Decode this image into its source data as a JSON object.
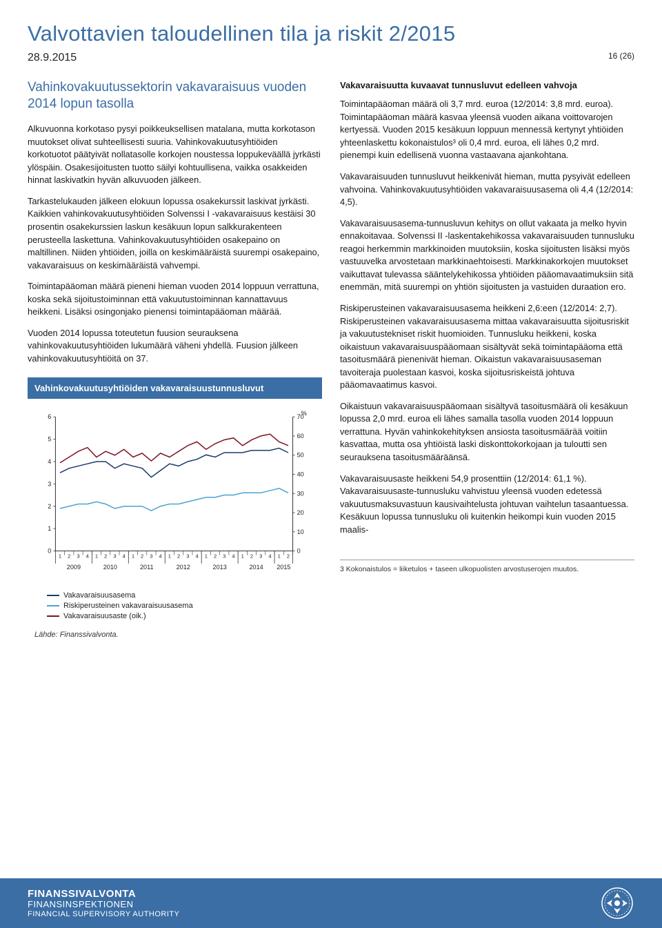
{
  "header": {
    "title": "Valvottavien taloudellinen tila ja riskit 2/2015",
    "date": "28.9.2015",
    "page_label": "16 (26)"
  },
  "left": {
    "section_heading": "Vahinkovakuutussektorin vakavaraisuus vuoden 2014 lopun tasolla",
    "p1": "Alkuvuonna korkotaso pysyi poikkeuksellisen matalana, mutta korkotason muutokset olivat suhteellisesti suuria. Vahinkovakuutusyhtiöiden korkotuotot päätyivät nollatasolle korkojen noustessa loppukeväällä jyrkästi ylöspäin. Osakesijoitusten tuotto säilyi kohtuullisena, vaikka osakkeiden hinnat laskivatkin hyvän alkuvuoden jälkeen.",
    "p2": "Tarkastelukauden jälkeen elokuun lopussa osakekurssit laskivat jyrkästi. Kaikkien vahinkovakuutusyhtiöiden Solvenssi I -vakavaraisuus kestäisi 30 prosentin osakekurssien laskun kesäkuun lopun salkkurakenteen perusteella laskettuna. Vahinkovakuutusyhtiöiden osakepaino on maltillinen. Niiden yhtiöiden, joilla on keskimääräistä suurempi osakepaino, vakavaraisuus on keskimääräistä vahvempi.",
    "p3": "Toimintapääoman määrä pieneni hieman vuoden 2014 loppuun verrattuna, koska sekä sijoitustoiminnan että vakuutustoiminnan kannattavuus heikkeni. Lisäksi osingonjako pienensi toimintapääoman määrää.",
    "p4": "Vuoden 2014 lopussa toteutetun fuusion seurauksena vahinkovakuutusyhtiöiden lukumäärä väheni yhdellä. Fuusion jälkeen vahinkovakuutusyhtiöitä on 37."
  },
  "right": {
    "subheading": "Vakavaraisuutta kuvaavat tunnusluvut edelleen vahvoja",
    "p1": "Toimintapääoman määrä oli 3,7 mrd. euroa (12/2014: 3,8 mrd. euroa). Toimintapääoman määrä kasvaa yleensä vuoden aikana voittovarojen kertyessä. Vuoden 2015 kesäkuun loppuun mennessä kertynyt yhtiöiden yhteenlaskettu kokonaistulos³ oli 0,4 mrd. euroa, eli lähes 0,2 mrd. pienempi kuin edellisenä vuonna vastaavana ajankohtana.",
    "p2": "Vakavaraisuuden tunnusluvut heikkenivät hieman, mutta pysyivät edelleen vahvoina. Vahinkovakuutusyhtiöiden vakavaraisuusasema oli 4,4 (12/2014: 4,5).",
    "p3": "Vakavaraisuusasema-tunnusluvun kehitys on ollut vakaata ja melko hyvin ennakoitavaa. Solvenssi II -laskentakehikossa vakavaraisuuden tunnusluku reagoi herkemmin markkinoiden muutoksiin, koska sijoitusten lisäksi myös vastuuvelka arvostetaan markkinaehtoisesti. Markkinakorkojen muutokset vaikuttavat tulevassa sääntelykehikossa yhtiöiden pääomavaatimuksiin sitä enemmän, mitä suurempi on yhtiön sijoitusten ja vastuiden duraation ero.",
    "p4": "Riskiperusteinen vakavaraisuusasema heikkeni 2,6:een (12/2014: 2,7). Riskiperusteinen vakavaraisuusasema mittaa vakavaraisuutta sijoitusriskit ja vakuutustekniset riskit huomioiden. Tunnusluku heikkeni, koska oikaistuun vakavaraisuuspääomaan sisältyvät sekä toimintapääoma että tasoitusmäärä pienenivät hieman. Oikaistun vakavaraisuusaseman tavoiteraja puolestaan kasvoi, koska sijoitusriskeistä johtuva pääomavaatimus kasvoi.",
    "p5": "Oikaistuun vakavaraisuuspääomaan sisältyvä tasoitusmäärä oli kesäkuun lopussa 2,0 mrd. euroa eli lähes samalla tasolla vuoden 2014 loppuun verrattuna. Hyvän vahinkokehityksen ansiosta tasoitusmäärää voitiin kasvattaa, mutta osa yhtiöistä laski diskonttokorkojaan ja tuloutti sen seurauksena tasoitusmääräänsä.",
    "p6": "Vakavaraisuusaste heikkeni 54,9 prosenttiin (12/2014: 61,1 %). Vakavaraisuusaste-tunnusluku vahvistuu yleensä vuoden edetessä vakuutusmaksuvastuun kausivaihtelusta johtuvan vaihtelun tasaantuessa. Kesäkuun lopussa tunnusluku oli kuitenkin heikompi kuin vuoden 2015 maalis-",
    "footnote": "3   Kokonaistulos = liiketulos + taseen ulkopuolisten arvostuserojen muutos."
  },
  "chart": {
    "type": "line",
    "title": "Vahinkovakuutusyhtiöiden vakavaraisuustunnusluvut",
    "left_axis": {
      "min": 0,
      "max": 6,
      "ticks": [
        0,
        1,
        2,
        3,
        4,
        5,
        6
      ]
    },
    "right_axis": {
      "label": "%",
      "min": 0,
      "max": 70,
      "ticks": [
        0,
        10,
        20,
        30,
        40,
        50,
        60,
        70
      ]
    },
    "years": [
      "2009",
      "2010",
      "2011",
      "2012",
      "2013",
      "2014",
      "2015"
    ],
    "quarters_per_year": 4,
    "quarters_last_year": 2,
    "series": [
      {
        "name": "Vakavaraisuusasema",
        "color": "#1a3a6e",
        "values": [
          3.5,
          3.7,
          3.8,
          3.9,
          4.0,
          4.0,
          3.7,
          3.9,
          3.8,
          3.7,
          3.3,
          3.6,
          3.9,
          3.8,
          4.0,
          4.1,
          4.3,
          4.2,
          4.4,
          4.4,
          4.4,
          4.5,
          4.5,
          4.5,
          4.6,
          4.4
        ]
      },
      {
        "name": "Riskiperusteinen vakavaraisuusasema",
        "color": "#4aa3d1",
        "values": [
          1.9,
          2.0,
          2.1,
          2.1,
          2.2,
          2.1,
          1.9,
          2.0,
          2.0,
          2.0,
          1.8,
          2.0,
          2.1,
          2.1,
          2.2,
          2.3,
          2.4,
          2.4,
          2.5,
          2.5,
          2.6,
          2.6,
          2.6,
          2.7,
          2.8,
          2.6
        ]
      },
      {
        "name": "Vakavaraisuusaste (oik.)",
        "color": "#7d1424",
        "yaxis": "right",
        "values": [
          46,
          49,
          52,
          54,
          49,
          52,
          50,
          53,
          49,
          51,
          47,
          51,
          49,
          52,
          55,
          57,
          53,
          56,
          58,
          59,
          55,
          58,
          60,
          61,
          57,
          55
        ]
      }
    ],
    "legend_items": [
      "Vakavaraisuusasema",
      "Riskiperusteinen vakavaraisuusasema",
      "Vakavaraisuusaste (oik.)"
    ],
    "source": "Lähde: Finanssivalvonta.",
    "background_color": "#ffffff",
    "grid_color": "#dcdcdc",
    "line_width": 1.5,
    "axis_fontsize": 9,
    "title_bar_color": "#3a6ea5",
    "title_color": "#ffffff"
  },
  "footer": {
    "line1": "FINANSSIVALVONTA",
    "line2": "FINANSINSPEKTIONEN",
    "line3": "FINANCIAL SUPERVISORY AUTHORITY"
  }
}
